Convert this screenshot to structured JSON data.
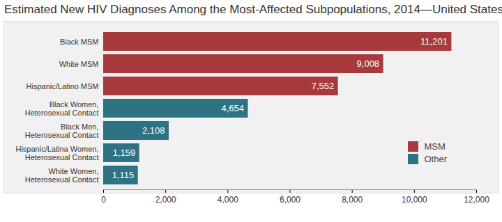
{
  "chart_data": {
    "type": "bar",
    "title": "Estimated New HIV Diagnoses Among the Most-Affected Subpopulations, 2014—United States",
    "orientation": "horizontal",
    "categories": [
      "Black MSM",
      "White MSM",
      "Hispanic/Latino MSM",
      "Black Women, Heterosexual Contact",
      "Black Men, Heterosexual Contact",
      "Hispanic/Latina Women, Heterosexual Contact",
      "White Women, Heterosexual Contact"
    ],
    "series": [
      {
        "name": "MSM",
        "color": "#a73a3c",
        "values": [
          11201,
          9008,
          7552,
          null,
          null,
          null,
          null
        ],
        "value_labels": [
          "11,201",
          "9,008",
          "7,552",
          null,
          null,
          null,
          null
        ]
      },
      {
        "name": "Other",
        "color": "#2e7384",
        "values": [
          null,
          null,
          null,
          4654,
          2108,
          1159,
          1115
        ],
        "value_labels": [
          null,
          null,
          null,
          "4,654",
          "2,108",
          "1,159",
          "1,115"
        ]
      }
    ],
    "xlim": [
      0,
      12000
    ],
    "xticks": [
      0,
      {
        "value": 2000,
        "label": "2,000"
      },
      {
        "value": 4000,
        "label": "4,000"
      },
      {
        "value": 6000,
        "label": "6,000"
      },
      {
        "value": 8000,
        "label": "8,000"
      },
      {
        "value": 10000,
        "label": "10,000"
      },
      {
        "value": 12000,
        "label": "12,000"
      }
    ],
    "grid": false,
    "legend": "bottom-right",
    "data_labels": true
  }
}
